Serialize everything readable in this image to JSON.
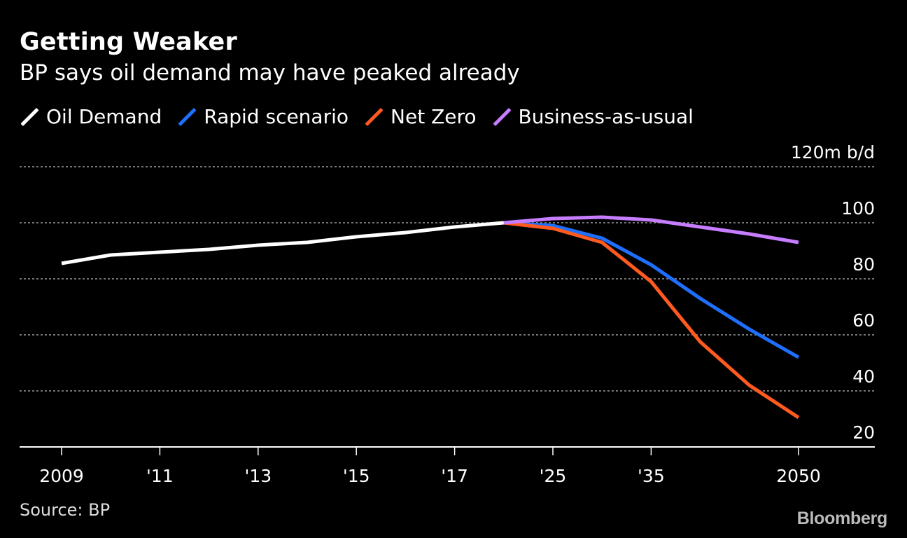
{
  "title": "Getting Weaker",
  "subtitle": "BP says oil demand may have peaked already",
  "source": "Source: BP",
  "brand": "Bloomberg",
  "colors": {
    "background": "#000000",
    "oil_demand": "#ffffff",
    "rapid": "#1f6fff",
    "net_zero": "#ff5a1f",
    "bau": "#c77dff",
    "grid": "#9a9a9a"
  },
  "legend": [
    {
      "label": "Oil Demand",
      "color_key": "oil_demand"
    },
    {
      "label": "Rapid scenario",
      "color_key": "rapid"
    },
    {
      "label": "Net Zero",
      "color_key": "net_zero"
    },
    {
      "label": "Business-as-usual",
      "color_key": "bau"
    }
  ],
  "chart_data": {
    "type": "line",
    "y_unit": "m b/d",
    "ylim": [
      20,
      120
    ],
    "yticks": [
      120,
      100,
      80,
      60,
      40,
      20
    ],
    "ytick_labels": [
      "120m b/d",
      "100",
      "80",
      "60",
      "40",
      "20"
    ],
    "grid": true,
    "legend_position": "top-left",
    "x_axis_note": "category positions, non-uniform time scale",
    "xtick_positions": [
      0,
      2,
      4,
      6,
      8,
      10,
      12,
      15
    ],
    "xtick_labels": [
      "2009",
      "'11",
      "'13",
      "'15",
      "'17",
      "'25",
      "'35",
      "2050"
    ],
    "series": [
      {
        "name": "Oil Demand",
        "color_key": "oil_demand",
        "x": [
          0,
          1,
          2,
          3,
          4,
          5,
          6,
          7,
          8,
          9
        ],
        "y": [
          85.5,
          88.5,
          89.5,
          90.5,
          92,
          93,
          95,
          96.5,
          98.5,
          100
        ]
      },
      {
        "name": "Rapid scenario",
        "color_key": "rapid",
        "x": [
          9,
          10,
          11,
          12,
          13,
          14,
          15
        ],
        "y": [
          100,
          99,
          94.5,
          85,
          73,
          62,
          52
        ]
      },
      {
        "name": "Net Zero",
        "color_key": "net_zero",
        "x": [
          9,
          10,
          11,
          12,
          13,
          14,
          15
        ],
        "y": [
          100,
          98,
          93,
          79,
          57.5,
          42,
          30.5
        ]
      },
      {
        "name": "Business-as-usual",
        "color_key": "bau",
        "x": [
          9,
          10,
          11,
          12,
          13,
          14,
          15
        ],
        "y": [
          100,
          101.5,
          102,
          101,
          98.5,
          96,
          93
        ]
      }
    ]
  }
}
